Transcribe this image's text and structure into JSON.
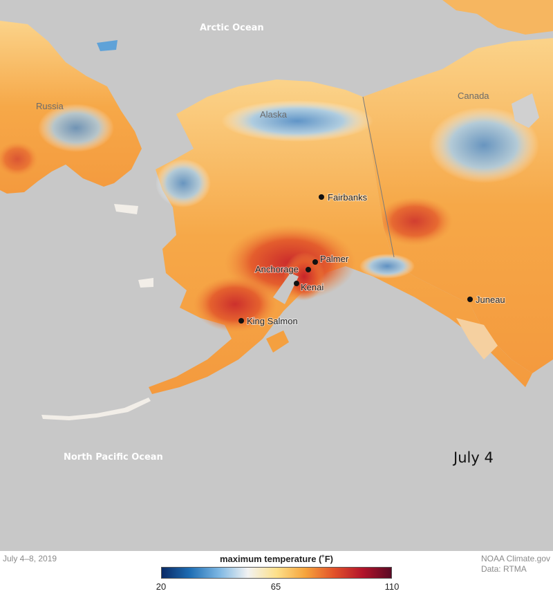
{
  "map": {
    "labels": {
      "arctic_ocean": "Arctic Ocean",
      "north_pacific_ocean": "North Pacific Ocean",
      "russia": "Russia",
      "alaska": "Alaska",
      "canada": "Canada"
    },
    "cities": [
      {
        "name": "Fairbanks"
      },
      {
        "name": "Palmer"
      },
      {
        "name": "Anchorage"
      },
      {
        "name": "Kenai"
      },
      {
        "name": "King Salmon"
      },
      {
        "name": "Juneau"
      }
    ],
    "date_label": "July 4"
  },
  "footer": {
    "date_range": "July 4–8, 2019",
    "credit_line1": "NOAA Climate.gov",
    "credit_line2": "Data: RTMA"
  },
  "legend": {
    "title": "maximum temperature (˚F)",
    "min_label": "20",
    "mid_label": "65",
    "max_label": "110",
    "colors": [
      "#0a2a66",
      "#1f6fb5",
      "#7db7e3",
      "#f2f2f2",
      "#fde08a",
      "#f6a43c",
      "#e2522a",
      "#b3142a",
      "#5a0a25"
    ]
  },
  "colors": {
    "ocean": "#c8c8c8",
    "land_warm": "#f7b257",
    "land_cool": "#f4f1ee",
    "hot": "#e2522a",
    "cold": "#5fa2d8"
  }
}
